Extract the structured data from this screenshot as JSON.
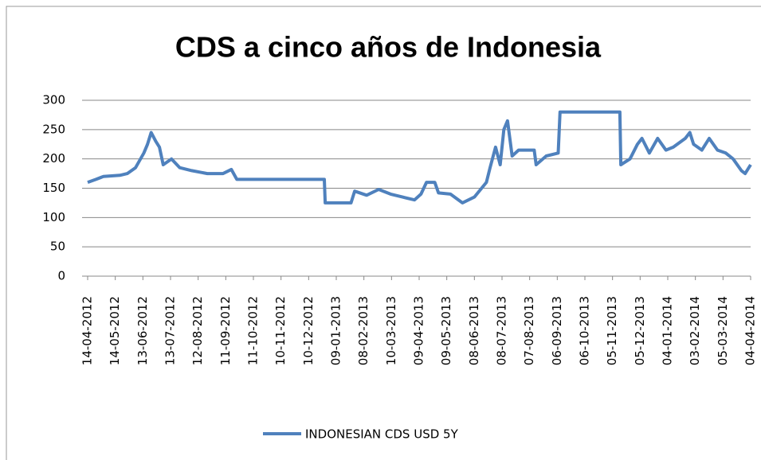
{
  "chart_data": {
    "type": "line",
    "title": "CDS a cinco años de Indonesia",
    "x": [
      "14-04-2012",
      "23-04-2012",
      "01-05-2012",
      "19-05-2012",
      "27-05-2012",
      "05-06-2012",
      "14-06-2012",
      "18-06-2012",
      "22-06-2012",
      "27-06-2012",
      "01-07-2012",
      "05-07-2012",
      "14-07-2012",
      "23-07-2012",
      "05-08-2012",
      "22-08-2012",
      "08-09-2012",
      "17-09-2012",
      "23-09-2012",
      "27-12-2012",
      "28-12-2012",
      "25-01-2013",
      "29-01-2013",
      "11-02-2013",
      "24-02-2013",
      "09-03-2013",
      "22-03-2013",
      "04-04-2013",
      "11-04-2013",
      "17-04-2013",
      "26-04-2013",
      "30-04-2013",
      "13-05-2013",
      "26-05-2013",
      "08-06-2013",
      "21-06-2013",
      "25-06-2013",
      "01-07-2013",
      "06-07-2013",
      "10-07-2013",
      "14-07-2013",
      "19-07-2013",
      "26-07-2013",
      "12-08-2013",
      "14-08-2013",
      "25-08-2013",
      "07-09-2013",
      "09-09-2013",
      "13-11-2013",
      "14-11-2013",
      "24-11-2013",
      "02-12-2013",
      "07-12-2013",
      "15-12-2013",
      "24-12-2013",
      "02-01-2014",
      "10-01-2014",
      "23-01-2014",
      "28-01-2014",
      "01-02-2014",
      "10-02-2014",
      "18-02-2014",
      "27-02-2014",
      "08-03-2014",
      "16-03-2014",
      "25-03-2014",
      "29-03-2014",
      "04-04-2014"
    ],
    "series": [
      {
        "name": "INDONESIAN  CDS USD  5Y",
        "color": "#4f81bd",
        "values": [
          160,
          165,
          170,
          172,
          175,
          185,
          210,
          225,
          245,
          230,
          220,
          190,
          200,
          185,
          180,
          175,
          175,
          182,
          165,
          165,
          125,
          125,
          145,
          138,
          148,
          140,
          135,
          130,
          140,
          160,
          160,
          142,
          140,
          125,
          135,
          160,
          185,
          220,
          190,
          250,
          265,
          205,
          215,
          215,
          190,
          205,
          210,
          280,
          280,
          190,
          200,
          225,
          235,
          210,
          235,
          215,
          220,
          235,
          245,
          225,
          215,
          235,
          215,
          210,
          200,
          180,
          175,
          190
        ]
      }
    ],
    "xlim": [
      "14-04-2012",
      "04-04-2014"
    ],
    "xticks": [
      "14-04-2012",
      "14-05-2012",
      "13-06-2012",
      "13-07-2012",
      "12-08-2012",
      "11-09-2012",
      "11-10-2012",
      "10-11-2012",
      "10-12-2012",
      "09-01-2013",
      "08-02-2013",
      "10-03-2013",
      "09-04-2013",
      "09-05-2013",
      "08-06-2013",
      "08-07-2013",
      "07-08-2013",
      "06-09-2013",
      "06-10-2013",
      "05-11-2013",
      "05-12-2013",
      "04-01-2014",
      "03-02-2014",
      "05-03-2014",
      "04-04-2014"
    ],
    "ylim": [
      0,
      300
    ],
    "yticks": [
      0,
      50,
      100,
      150,
      200,
      250,
      300
    ],
    "grid": true,
    "legend": "bottom"
  }
}
